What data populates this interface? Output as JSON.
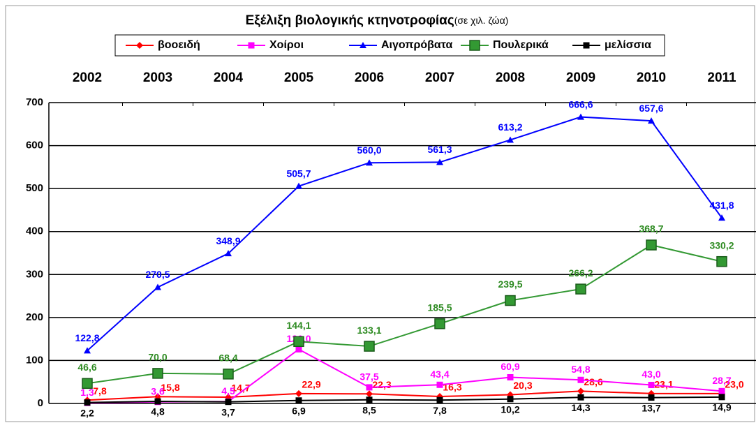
{
  "chart_data": {
    "type": "line",
    "title": "Εξέλιξη βιολογικής κτηνοτροφίας",
    "subtitle": "(σε χιλ. ζώα)",
    "categories": [
      "2002",
      "2003",
      "2004",
      "2005",
      "2006",
      "2007",
      "2008",
      "2009",
      "2010",
      "2011"
    ],
    "ylim": [
      0,
      700
    ],
    "yticks": [
      0,
      100,
      200,
      300,
      400,
      500,
      600,
      700
    ],
    "grid": true,
    "legend": "top",
    "series": [
      {
        "name": "βοοειδή",
        "color": "#ff0000",
        "marker": "diamond",
        "values": [
          7.8,
          15.8,
          14.7,
          22.9,
          22.3,
          16.3,
          20.3,
          28.6,
          23.1,
          23.0
        ],
        "value_labels": [
          "7,8",
          "15,8",
          "14,7",
          "22,9",
          "22,3",
          "16,3",
          "20,3",
          "28,6",
          "23,1",
          "23,0"
        ]
      },
      {
        "name": "Χοίροι",
        "color": "#ff00ff",
        "marker": "square",
        "values": [
          1.3,
          3.6,
          4.5,
          126.0,
          37.5,
          43.4,
          60.9,
          54.8,
          43.0,
          28.7
        ],
        "value_labels": [
          "1,3",
          "3,6",
          "4,5",
          "126,0",
          "37,5",
          "43,4",
          "60,9",
          "54,8",
          "43,0",
          "28,7"
        ]
      },
      {
        "name": "Αιγοπρόβατα",
        "color": "#0000ff",
        "marker": "triangle",
        "values": [
          122.8,
          270.5,
          348.9,
          505.7,
          560.0,
          561.3,
          613.2,
          666.6,
          657.6,
          431.8
        ],
        "value_labels": [
          "122,8",
          "270,5",
          "348,9",
          "505,7",
          "560,0",
          "561,3",
          "613,2",
          "666,6",
          "657,6",
          "431,8"
        ]
      },
      {
        "name": "Πουλερικά",
        "color": "#339933",
        "marker": "bigsquare",
        "values": [
          46.6,
          70.0,
          68.4,
          144.1,
          133.1,
          185.5,
          239.5,
          266.2,
          368.7,
          330.2
        ],
        "value_labels": [
          "46,6",
          "70,0",
          "68,4",
          "144,1",
          "133,1",
          "185,5",
          "239,5",
          "266,2",
          "368,7",
          "330,2"
        ]
      },
      {
        "name": "μελίσσια",
        "color": "#000000",
        "marker": "square",
        "values": [
          2.2,
          4.8,
          3.7,
          6.9,
          8.5,
          7.8,
          10.2,
          14.3,
          13.7,
          14.9
        ],
        "value_labels": [
          "2,2",
          "4,8",
          "3,7",
          "6,9",
          "8,5",
          "7,8",
          "10,2",
          "14,3",
          "13,7",
          "14,9"
        ]
      }
    ]
  }
}
